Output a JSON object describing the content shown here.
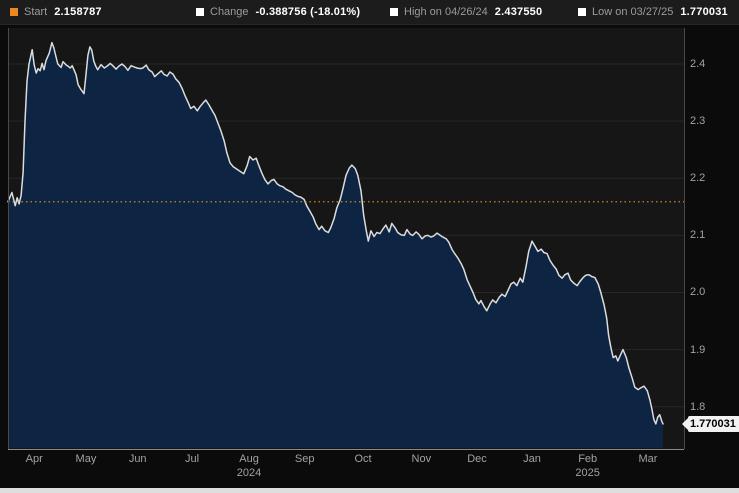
{
  "header": {
    "legends": [
      {
        "label": "Start",
        "value": "2.158787",
        "swatch_color": "#f0861f"
      },
      {
        "label": "Change",
        "value": "-0.388756 (-18.01%)",
        "swatch_color": "#ffffff"
      },
      {
        "label": "High on 04/26/24",
        "value": "2.437550",
        "swatch_color": "#ffffff"
      },
      {
        "label": "Low on 03/27/25",
        "value": "1.770031",
        "swatch_color": "#ffffff"
      }
    ]
  },
  "badge": {
    "last_price": "1.770031"
  },
  "colors": {
    "accent_orange": "#c9882b",
    "area_fill": "#0d2443",
    "price_line": "#dcdcdc",
    "grid": "#272727",
    "plot_bg": "#161616",
    "side_border": "#4a4a4a",
    "bottom_border": "#8a8a8a"
  },
  "axis": {
    "y_ticks": [
      "2.4",
      "2.3",
      "2.2",
      "2.1",
      "2.0",
      "1.9",
      "1.8"
    ],
    "x_ticks": [
      {
        "label": "Apr",
        "t": 0.04
      },
      {
        "label": "May",
        "t": 0.119
      },
      {
        "label": "Jun",
        "t": 0.198
      },
      {
        "label": "Jul",
        "t": 0.281
      },
      {
        "label": "Aug",
        "t": 0.368
      },
      {
        "label": "Sep",
        "t": 0.453
      },
      {
        "label": "Oct",
        "t": 0.542
      },
      {
        "label": "Nov",
        "t": 0.631
      },
      {
        "label": "Dec",
        "t": 0.716
      },
      {
        "label": "Jan",
        "t": 0.8
      },
      {
        "label": "Feb",
        "t": 0.885
      },
      {
        "label": "Mar",
        "t": 0.977
      }
    ],
    "year_labels": [
      {
        "label": "2024",
        "t": 0.368
      },
      {
        "label": "2025",
        "t": 0.885
      }
    ]
  },
  "chart_data": {
    "type": "area",
    "title": "",
    "x_range": [
      "2024-03-27",
      "2025-03-27"
    ],
    "ylim": [
      1.726,
      2.463
    ],
    "grid": "horizontal",
    "start_value": 2.158787,
    "change": -0.388756,
    "change_pct": -18.01,
    "high": {
      "date": "04/26/24",
      "value": 2.43755
    },
    "low": {
      "date": "03/27/25",
      "value": 1.770031
    },
    "last": 1.770031,
    "points": [
      [
        0,
        2.159
      ],
      [
        0.006,
        2.175
      ],
      [
        0.011,
        2.152
      ],
      [
        0.014,
        2.166
      ],
      [
        0.017,
        2.155
      ],
      [
        0.02,
        2.17
      ],
      [
        0.023,
        2.21
      ],
      [
        0.026,
        2.3
      ],
      [
        0.029,
        2.37
      ],
      [
        0.032,
        2.4
      ],
      [
        0.037,
        2.425
      ],
      [
        0.04,
        2.398
      ],
      [
        0.043,
        2.384
      ],
      [
        0.046,
        2.392
      ],
      [
        0.049,
        2.388
      ],
      [
        0.052,
        2.401
      ],
      [
        0.055,
        2.39
      ],
      [
        0.058,
        2.406
      ],
      [
        0.063,
        2.419
      ],
      [
        0.067,
        2.4375
      ],
      [
        0.07,
        2.428
      ],
      [
        0.073,
        2.414
      ],
      [
        0.076,
        2.4
      ],
      [
        0.081,
        2.394
      ],
      [
        0.084,
        2.404
      ],
      [
        0.089,
        2.398
      ],
      [
        0.092,
        2.396
      ],
      [
        0.095,
        2.393
      ],
      [
        0.098,
        2.397
      ],
      [
        0.101,
        2.389
      ],
      [
        0.104,
        2.381
      ],
      [
        0.107,
        2.364
      ],
      [
        0.111,
        2.356
      ],
      [
        0.116,
        2.348
      ],
      [
        0.119,
        2.38
      ],
      [
        0.122,
        2.415
      ],
      [
        0.125,
        2.43
      ],
      [
        0.128,
        2.424
      ],
      [
        0.131,
        2.405
      ],
      [
        0.134,
        2.396
      ],
      [
        0.137,
        2.39
      ],
      [
        0.142,
        2.399
      ],
      [
        0.147,
        2.393
      ],
      [
        0.151,
        2.396
      ],
      [
        0.156,
        2.401
      ],
      [
        0.16,
        2.397
      ],
      [
        0.165,
        2.391
      ],
      [
        0.169,
        2.396
      ],
      [
        0.174,
        2.4
      ],
      [
        0.179,
        2.395
      ],
      [
        0.183,
        2.389
      ],
      [
        0.188,
        2.397
      ],
      [
        0.192,
        2.395
      ],
      [
        0.197,
        2.393
      ],
      [
        0.202,
        2.392
      ],
      [
        0.206,
        2.393
      ],
      [
        0.211,
        2.398
      ],
      [
        0.215,
        2.39
      ],
      [
        0.22,
        2.386
      ],
      [
        0.224,
        2.378
      ],
      [
        0.229,
        2.383
      ],
      [
        0.234,
        2.388
      ],
      [
        0.238,
        2.382
      ],
      [
        0.243,
        2.379
      ],
      [
        0.247,
        2.386
      ],
      [
        0.252,
        2.382
      ],
      [
        0.256,
        2.374
      ],
      [
        0.261,
        2.368
      ],
      [
        0.266,
        2.357
      ],
      [
        0.27,
        2.345
      ],
      [
        0.275,
        2.333
      ],
      [
        0.279,
        2.322
      ],
      [
        0.284,
        2.326
      ],
      [
        0.289,
        2.318
      ],
      [
        0.293,
        2.325
      ],
      [
        0.298,
        2.332
      ],
      [
        0.302,
        2.337
      ],
      [
        0.307,
        2.328
      ],
      [
        0.311,
        2.32
      ],
      [
        0.316,
        2.31
      ],
      [
        0.321,
        2.295
      ],
      [
        0.325,
        2.283
      ],
      [
        0.33,
        2.265
      ],
      [
        0.334,
        2.245
      ],
      [
        0.339,
        2.227
      ],
      [
        0.344,
        2.22
      ],
      [
        0.348,
        2.217
      ],
      [
        0.353,
        2.213
      ],
      [
        0.357,
        2.21
      ],
      [
        0.36,
        2.208
      ],
      [
        0.365,
        2.222
      ],
      [
        0.369,
        2.238
      ],
      [
        0.374,
        2.232
      ],
      [
        0.379,
        2.235
      ],
      [
        0.383,
        2.222
      ],
      [
        0.388,
        2.208
      ],
      [
        0.392,
        2.198
      ],
      [
        0.397,
        2.19
      ],
      [
        0.402,
        2.196
      ],
      [
        0.406,
        2.198
      ],
      [
        0.411,
        2.19
      ],
      [
        0.415,
        2.187
      ],
      [
        0.42,
        2.185
      ],
      [
        0.424,
        2.181
      ],
      [
        0.429,
        2.178
      ],
      [
        0.434,
        2.175
      ],
      [
        0.438,
        2.171
      ],
      [
        0.443,
        2.168
      ],
      [
        0.447,
        2.167
      ],
      [
        0.452,
        2.163
      ],
      [
        0.456,
        2.152
      ],
      [
        0.461,
        2.142
      ],
      [
        0.466,
        2.132
      ],
      [
        0.47,
        2.12
      ],
      [
        0.475,
        2.11
      ],
      [
        0.479,
        2.116
      ],
      [
        0.484,
        2.108
      ],
      [
        0.489,
        2.105
      ],
      [
        0.493,
        2.114
      ],
      [
        0.498,
        2.13
      ],
      [
        0.502,
        2.148
      ],
      [
        0.507,
        2.162
      ],
      [
        0.511,
        2.18
      ],
      [
        0.516,
        2.205
      ],
      [
        0.521,
        2.218
      ],
      [
        0.525,
        2.223
      ],
      [
        0.53,
        2.217
      ],
      [
        0.534,
        2.205
      ],
      [
        0.539,
        2.178
      ],
      [
        0.543,
        2.135
      ],
      [
        0.547,
        2.108
      ],
      [
        0.55,
        2.09
      ],
      [
        0.554,
        2.108
      ],
      [
        0.559,
        2.098
      ],
      [
        0.563,
        2.105
      ],
      [
        0.568,
        2.103
      ],
      [
        0.573,
        2.112
      ],
      [
        0.577,
        2.118
      ],
      [
        0.582,
        2.106
      ],
      [
        0.586,
        2.121
      ],
      [
        0.591,
        2.113
      ],
      [
        0.595,
        2.105
      ],
      [
        0.6,
        2.101
      ],
      [
        0.605,
        2.1
      ],
      [
        0.609,
        2.11
      ],
      [
        0.614,
        2.102
      ],
      [
        0.618,
        2.1
      ],
      [
        0.623,
        2.106
      ],
      [
        0.627,
        2.102
      ],
      [
        0.632,
        2.094
      ],
      [
        0.637,
        2.099
      ],
      [
        0.641,
        2.1
      ],
      [
        0.646,
        2.097
      ],
      [
        0.65,
        2.099
      ],
      [
        0.655,
        2.104
      ],
      [
        0.66,
        2.1
      ],
      [
        0.664,
        2.097
      ],
      [
        0.669,
        2.094
      ],
      [
        0.673,
        2.088
      ],
      [
        0.678,
        2.075
      ],
      [
        0.682,
        2.068
      ],
      [
        0.687,
        2.06
      ],
      [
        0.692,
        2.05
      ],
      [
        0.696,
        2.04
      ],
      [
        0.701,
        2.022
      ],
      [
        0.705,
        2.012
      ],
      [
        0.71,
        2.0
      ],
      [
        0.714,
        1.988
      ],
      [
        0.719,
        1.98
      ],
      [
        0.722,
        1.986
      ],
      [
        0.727,
        1.975
      ],
      [
        0.731,
        1.968
      ],
      [
        0.736,
        1.98
      ],
      [
        0.74,
        1.987
      ],
      [
        0.745,
        1.982
      ],
      [
        0.75,
        1.992
      ],
      [
        0.754,
        1.997
      ],
      [
        0.759,
        1.993
      ],
      [
        0.763,
        2.003
      ],
      [
        0.768,
        2.015
      ],
      [
        0.772,
        2.018
      ],
      [
        0.777,
        2.012
      ],
      [
        0.782,
        2.025
      ],
      [
        0.786,
        2.018
      ],
      [
        0.791,
        2.046
      ],
      [
        0.795,
        2.072
      ],
      [
        0.8,
        2.09
      ],
      [
        0.805,
        2.08
      ],
      [
        0.809,
        2.072
      ],
      [
        0.814,
        2.076
      ],
      [
        0.818,
        2.07
      ],
      [
        0.823,
        2.068
      ],
      [
        0.827,
        2.057
      ],
      [
        0.832,
        2.048
      ],
      [
        0.837,
        2.041
      ],
      [
        0.841,
        2.03
      ],
      [
        0.846,
        2.025
      ],
      [
        0.85,
        2.031
      ],
      [
        0.855,
        2.034
      ],
      [
        0.859,
        2.022
      ],
      [
        0.864,
        2.016
      ],
      [
        0.869,
        2.012
      ],
      [
        0.873,
        2.019
      ],
      [
        0.878,
        2.026
      ],
      [
        0.882,
        2.03
      ],
      [
        0.887,
        2.031
      ],
      [
        0.891,
        2.028
      ],
      [
        0.896,
        2.026
      ],
      [
        0.901,
        2.015
      ],
      [
        0.905,
        2.0
      ],
      [
        0.91,
        1.978
      ],
      [
        0.914,
        1.955
      ],
      [
        0.917,
        1.925
      ],
      [
        0.921,
        1.9
      ],
      [
        0.924,
        1.886
      ],
      [
        0.928,
        1.889
      ],
      [
        0.931,
        1.88
      ],
      [
        0.936,
        1.893
      ],
      [
        0.939,
        1.9
      ],
      [
        0.944,
        1.886
      ],
      [
        0.948,
        1.868
      ],
      [
        0.953,
        1.85
      ],
      [
        0.957,
        1.834
      ],
      [
        0.962,
        1.83
      ],
      [
        0.966,
        1.833
      ],
      [
        0.971,
        1.836
      ],
      [
        0.976,
        1.828
      ],
      [
        0.98,
        1.812
      ],
      [
        0.983,
        1.796
      ],
      [
        0.986,
        1.778
      ],
      [
        0.989,
        1.77
      ],
      [
        0.992,
        1.782
      ],
      [
        0.995,
        1.786
      ],
      [
        0.998,
        1.775
      ],
      [
        1,
        1.77
      ]
    ]
  }
}
